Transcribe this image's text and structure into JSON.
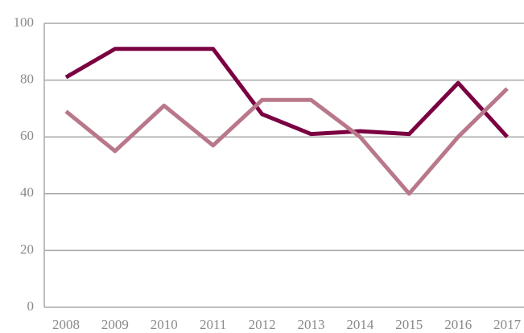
{
  "chart_data": {
    "type": "line",
    "categories": [
      "2008",
      "2009",
      "2010",
      "2011",
      "2012",
      "2013",
      "2014",
      "2015",
      "2016",
      "2017"
    ],
    "series": [
      {
        "color": "#7b0042",
        "values": [
          81,
          91,
          91,
          91,
          68,
          61,
          62,
          61,
          79,
          60
        ]
      },
      {
        "color": "#b9788a",
        "values": [
          69,
          55,
          71,
          57,
          73,
          73,
          60,
          40,
          60,
          77
        ]
      }
    ],
    "ylim": [
      0,
      100
    ],
    "yticks": [
      0,
      20,
      40,
      60,
      80,
      100
    ],
    "grid": true
  }
}
